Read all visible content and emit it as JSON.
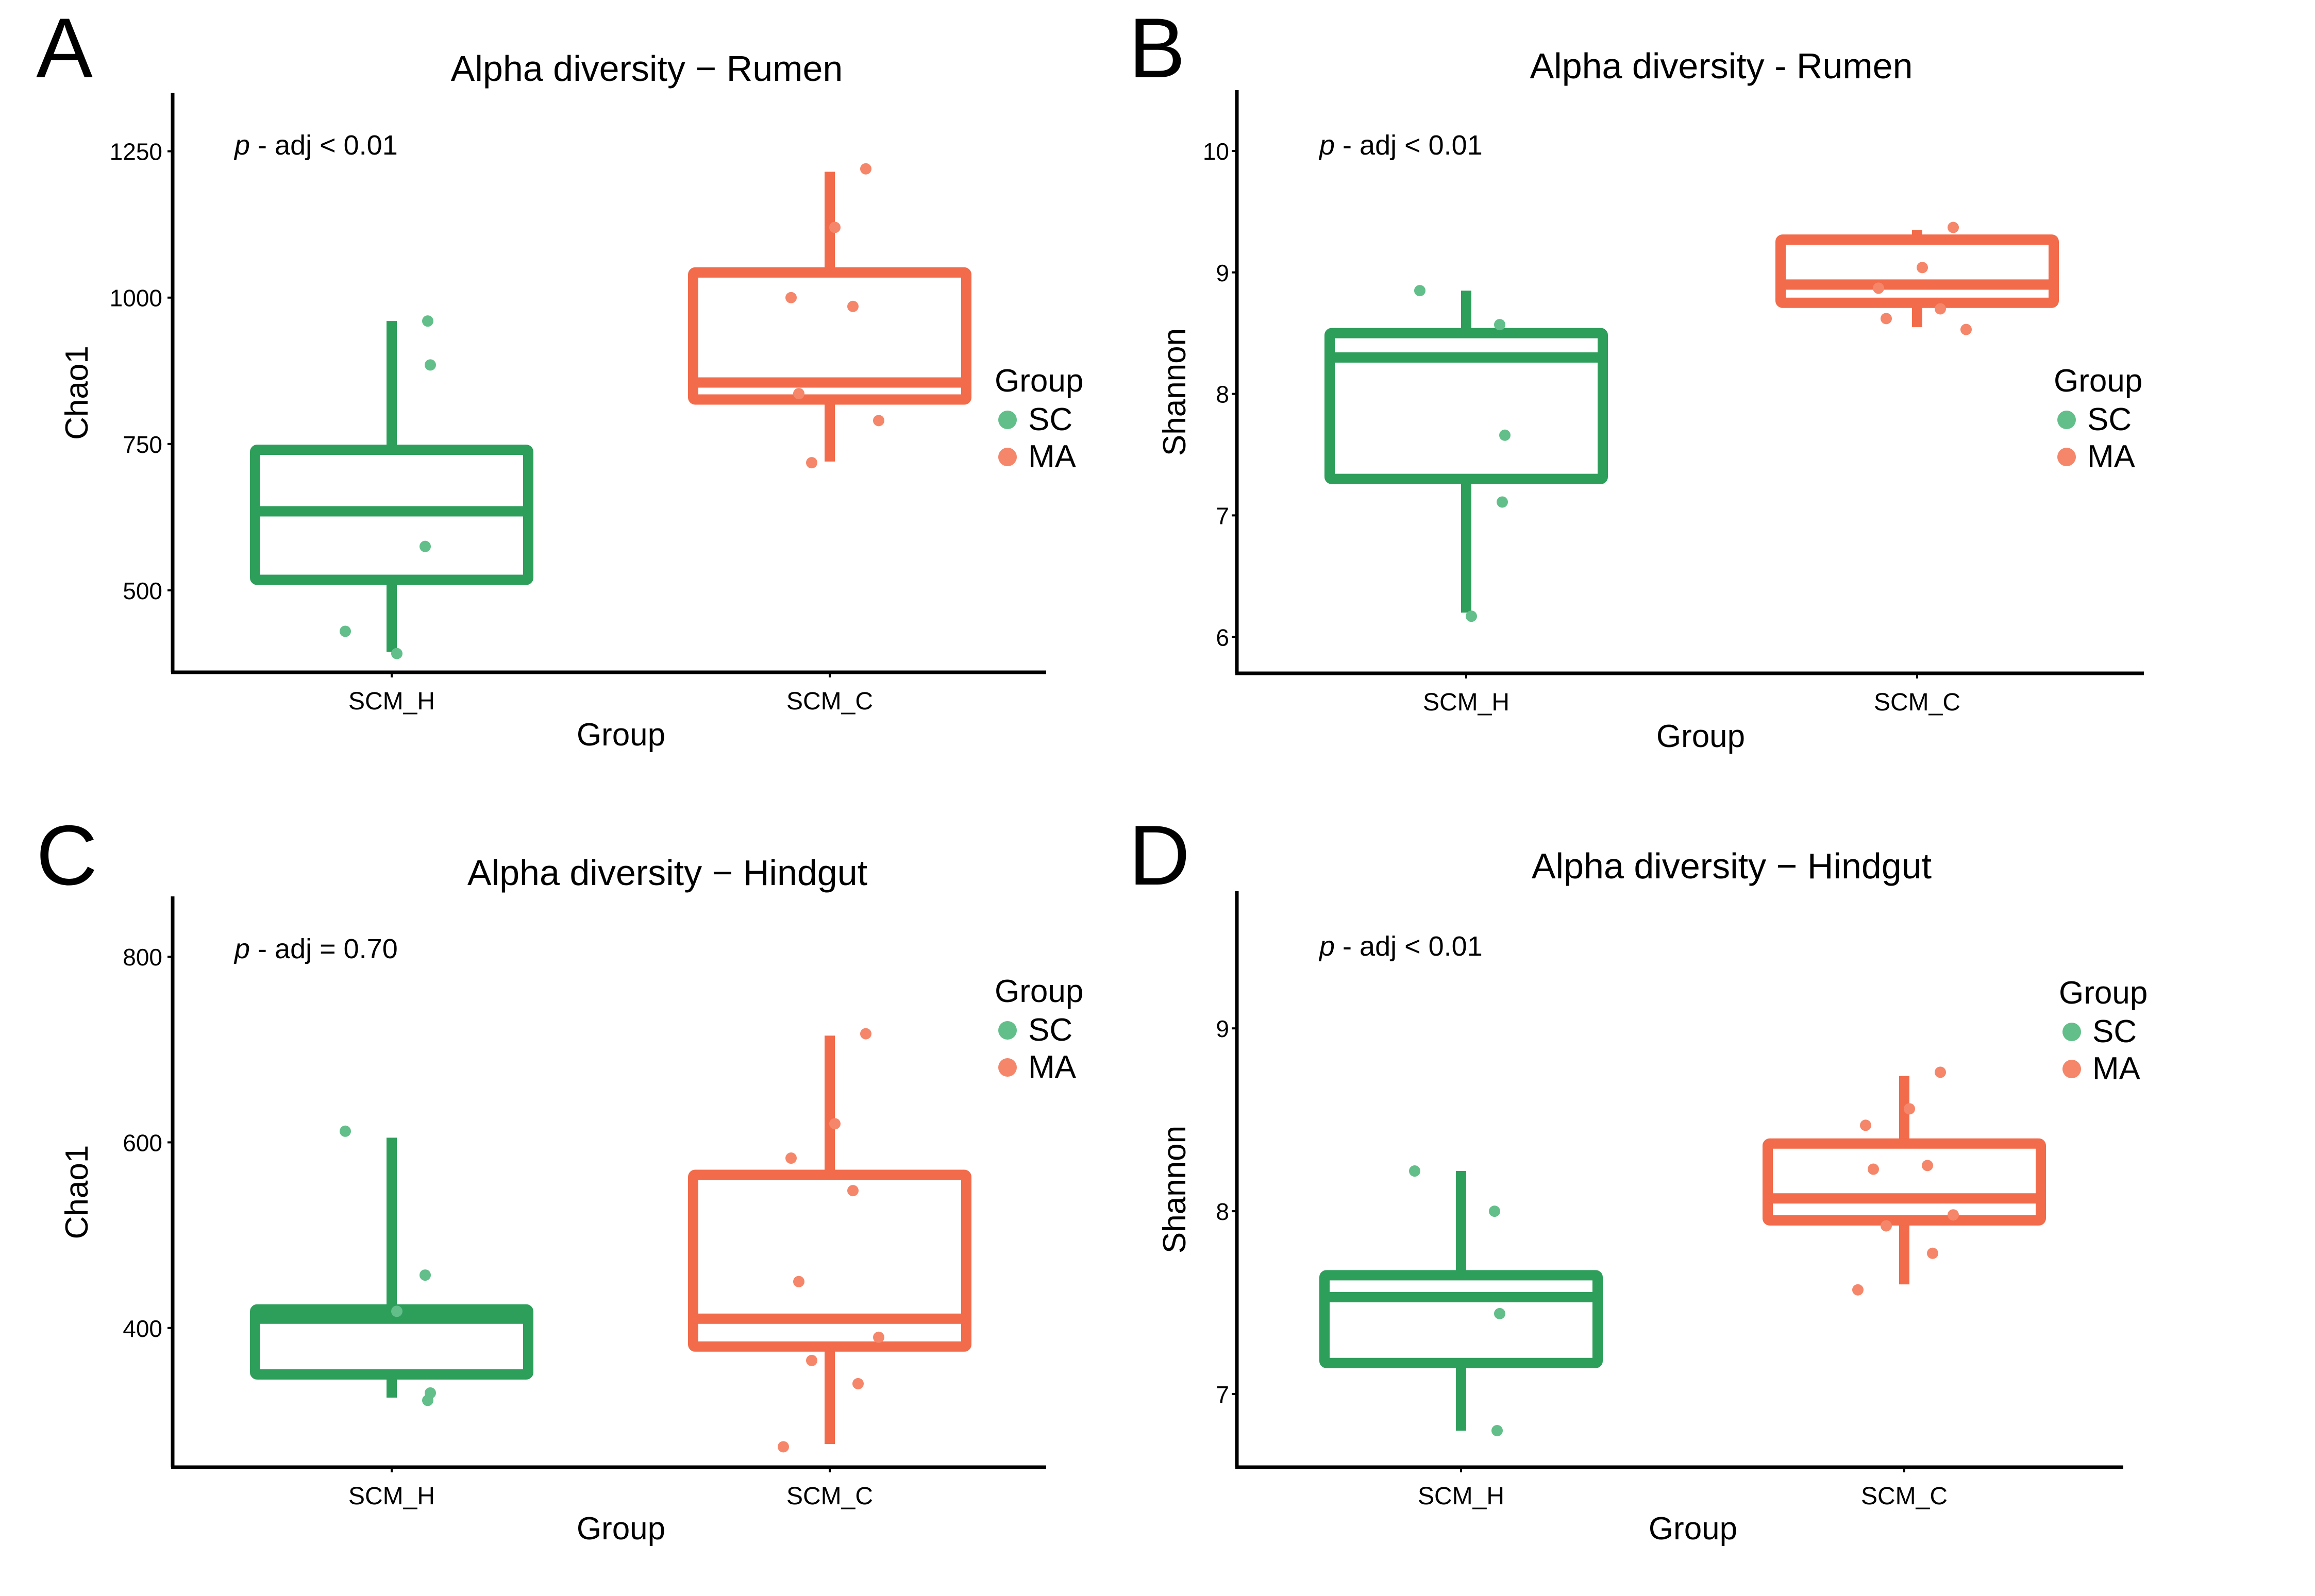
{
  "legend_colors": {
    "SC": "#2e9e5b",
    "MA": "#f26b4a",
    "SC_point": "#62bf8a",
    "MA_point": "#f5866a"
  },
  "chart_data": [
    {
      "panel": "A",
      "type": "box",
      "title": "Alpha diversity − Rumen",
      "annotation": {
        "italic": "p",
        "rest": " - adj < 0.01"
      },
      "xlabel": "Group",
      "ylabel": "Chao1",
      "categories": [
        "SCM_H",
        "SCM_C"
      ],
      "yticks": [
        500,
        750,
        1000,
        1250
      ],
      "ylim": [
        360,
        1350
      ],
      "legend": {
        "title": "Group",
        "entries": [
          "SC",
          "MA"
        ]
      },
      "boxes": [
        {
          "category": "SCM_H",
          "group": "SC",
          "min": 395,
          "q1": 518,
          "median": 635,
          "q3": 740,
          "max": 960
        },
        {
          "category": "SCM_C",
          "group": "MA",
          "min": 720,
          "q1": 826,
          "median": 855,
          "q3": 1043,
          "max": 1215
        }
      ],
      "points": [
        {
          "category": "SCM_H",
          "group": "SC",
          "values": [
            430,
            575,
            885,
            960,
            392
          ]
        },
        {
          "category": "SCM_C",
          "group": "MA",
          "values": [
            1220,
            1120,
            1000,
            985,
            836,
            790,
            718
          ]
        }
      ]
    },
    {
      "panel": "B",
      "type": "box",
      "title": "Alpha diversity - Rumen",
      "annotation": {
        "italic": "p",
        "rest": " - adj < 0.01"
      },
      "xlabel": "Group",
      "ylabel": "Shannon",
      "categories": [
        "SCM_H",
        "SCM_C"
      ],
      "yticks": [
        6,
        7,
        8,
        9,
        10
      ],
      "ylim": [
        5.7,
        10.5
      ],
      "legend": {
        "title": "Group",
        "entries": [
          "SC",
          "MA"
        ]
      },
      "boxes": [
        {
          "category": "SCM_H",
          "group": "SC",
          "min": 6.2,
          "q1": 7.3,
          "median": 8.3,
          "q3": 8.5,
          "max": 8.85
        },
        {
          "category": "SCM_C",
          "group": "MA",
          "min": 8.55,
          "q1": 8.75,
          "median": 8.9,
          "q3": 9.27,
          "max": 9.35
        }
      ],
      "points": [
        {
          "category": "SCM_H",
          "group": "SC",
          "values": [
            8.85,
            8.57,
            7.66,
            7.11,
            6.17
          ]
        },
        {
          "category": "SCM_C",
          "group": "MA",
          "values": [
            9.37,
            9.04,
            8.87,
            8.7,
            8.62,
            8.53
          ]
        }
      ]
    },
    {
      "panel": "C",
      "type": "box",
      "title": "Alpha diversity −  Hindgut",
      "annotation": {
        "italic": "p",
        "rest": " - adj = 0.70"
      },
      "xlabel": "Group",
      "ylabel": "Chao1",
      "categories": [
        "SCM_H",
        "SCM_C"
      ],
      "yticks": [
        400,
        600,
        800
      ],
      "ylim": [
        250,
        865
      ],
      "legend": {
        "title": "Group",
        "entries": [
          "SC",
          "MA"
        ]
      },
      "boxes": [
        {
          "category": "SCM_H",
          "group": "SC",
          "min": 325,
          "q1": 350,
          "median": 410,
          "q3": 420,
          "max": 605
        },
        {
          "category": "SCM_C",
          "group": "MA",
          "min": 275,
          "q1": 380,
          "median": 410,
          "q3": 565,
          "max": 715
        }
      ],
      "points": [
        {
          "category": "SCM_H",
          "group": "SC",
          "values": [
            612,
            457,
            330,
            322,
            418
          ]
        },
        {
          "category": "SCM_C",
          "group": "MA",
          "values": [
            717,
            620,
            583,
            548,
            450,
            390,
            365,
            340,
            272
          ]
        }
      ]
    },
    {
      "panel": "D",
      "type": "box",
      "title": "Alpha diversity − Hindgut",
      "annotation": {
        "italic": "p",
        "rest": " - adj < 0.01"
      },
      "xlabel": "Group",
      "ylabel": "Shannon",
      "categories": [
        "SCM_H",
        "SCM_C"
      ],
      "yticks": [
        7,
        8,
        9
      ],
      "ylim": [
        6.6,
        9.75
      ],
      "legend": {
        "title": "Group",
        "entries": [
          "SC",
          "MA"
        ]
      },
      "boxes": [
        {
          "category": "SCM_H",
          "group": "SC",
          "min": 6.8,
          "q1": 7.17,
          "median": 7.53,
          "q3": 7.65,
          "max": 8.22
        },
        {
          "category": "SCM_C",
          "group": "MA",
          "min": 7.6,
          "q1": 7.95,
          "median": 8.07,
          "q3": 8.37,
          "max": 8.74
        }
      ],
      "points": [
        {
          "category": "SCM_H",
          "group": "SC",
          "values": [
            8.22,
            8.0,
            7.44,
            6.8
          ]
        },
        {
          "category": "SCM_C",
          "group": "MA",
          "values": [
            8.76,
            8.56,
            8.47,
            8.25,
            8.23,
            7.98,
            7.92,
            7.77,
            7.57
          ]
        }
      ]
    }
  ]
}
